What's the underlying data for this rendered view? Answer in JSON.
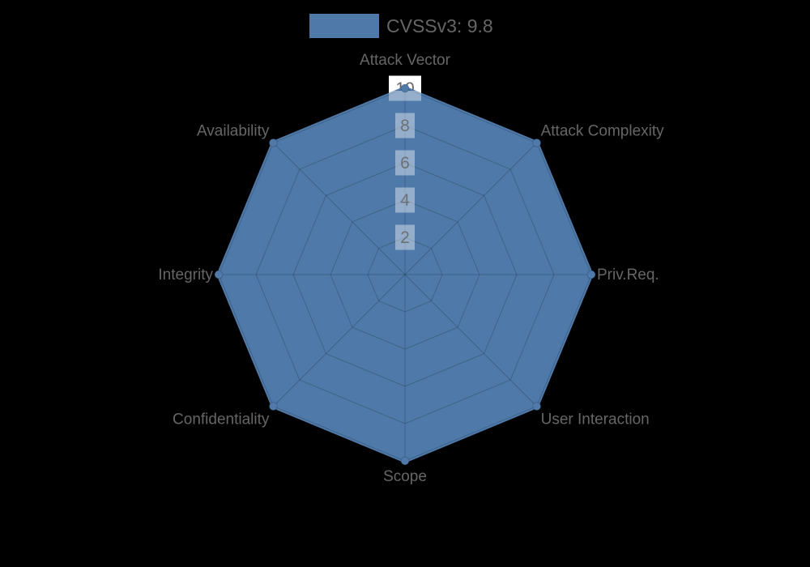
{
  "background": "#000000",
  "legend": {
    "label": "CVSSv3: 9.8",
    "swatch_color": "#4e79a8"
  },
  "chart_data": {
    "type": "radar",
    "title": "CVSSv3: 9.8",
    "categories": [
      "Attack Vector",
      "Attack Complexity",
      "Priv.Req.",
      "User Interaction",
      "Scope",
      "Confidentiality",
      "Integrity",
      "Availability"
    ],
    "series": [
      {
        "name": "CVSSv3: 9.8",
        "values": [
          10,
          10,
          10,
          10,
          10,
          10,
          10,
          10
        ]
      }
    ],
    "rmin": 0,
    "rmax": 10,
    "ticks": [
      2,
      4,
      6,
      8,
      10
    ],
    "grid": true,
    "legend_position": "top",
    "colors": {
      "fill": "#4e79a8",
      "stroke": "#4e79a8",
      "grid_line": "rgba(0,0,0,0.18)",
      "tick_backdrop": "rgba(255,255,255,0.4)",
      "tick_backdrop_max": "#ffffff",
      "text": "#666666"
    }
  }
}
